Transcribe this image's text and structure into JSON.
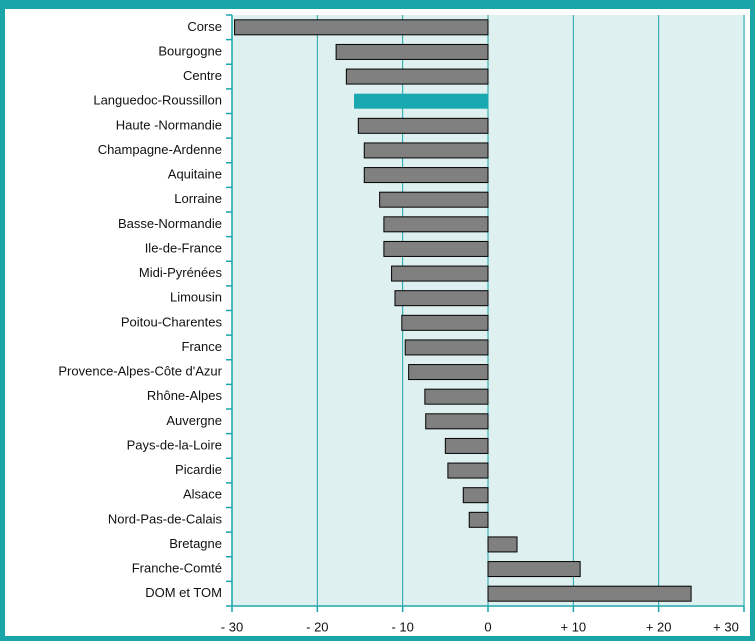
{
  "chart_data": {
    "type": "bar",
    "orientation": "horizontal",
    "categories": [
      "Corse",
      "Bourgogne",
      "Centre",
      "Languedoc-Roussillon",
      "Haute -Normandie",
      "Champagne-Ardenne",
      "Aquitaine",
      "Lorraine",
      "Basse-Normandie",
      "Ile-de-France",
      "Midi-Pyrénées",
      "Limousin",
      "Poitou-Charentes",
      "France",
      "Provence-Alpes-Côte d'Azur",
      "Rhône-Alpes",
      "Auvergne",
      "Pays-de-la-Loire",
      "Picardie",
      "Alsace",
      "Nord-Pas-de-Calais",
      "Bretagne",
      "Franche-Comté",
      "DOM et TOM"
    ],
    "values": [
      -29.7,
      -17.8,
      -16.6,
      -15.7,
      -15.2,
      -14.5,
      -14.5,
      -12.7,
      -12.2,
      -12.2,
      -11.3,
      -10.9,
      -10.1,
      -9.7,
      -9.3,
      -7.4,
      -7.3,
      -5.0,
      -4.7,
      -2.9,
      -2.2,
      3.4,
      10.8,
      23.8
    ],
    "colors": [
      "#808080",
      "#808080",
      "#808080",
      "#1aa8b0",
      "#808080",
      "#808080",
      "#808080",
      "#808080",
      "#808080",
      "#808080",
      "#808080",
      "#808080",
      "#808080",
      "#808080",
      "#808080",
      "#808080",
      "#808080",
      "#808080",
      "#808080",
      "#808080",
      "#808080",
      "#808080",
      "#808080",
      "#808080"
    ],
    "xlim": [
      -30,
      30
    ],
    "xticks": [
      {
        "value": -30,
        "label": "- 30"
      },
      {
        "value": -20,
        "label": "- 20"
      },
      {
        "value": -10,
        "label": "- 10"
      },
      0,
      {
        "value": 10,
        "label": "+ 10"
      },
      {
        "value": 20,
        "label": "+ 20"
      },
      {
        "value": 30,
        "label": "+ 30"
      }
    ],
    "grid": true
  }
}
